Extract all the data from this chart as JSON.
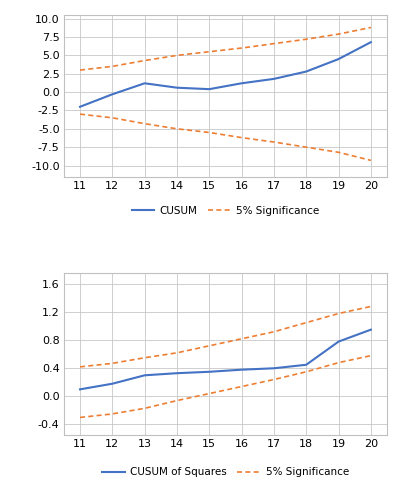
{
  "x": [
    11,
    12,
    13,
    14,
    15,
    16,
    17,
    18,
    19,
    20
  ],
  "cusum": [
    -2.0,
    -0.3,
    1.2,
    0.6,
    0.4,
    1.2,
    1.8,
    2.8,
    4.5,
    6.8
  ],
  "cusum_upper": [
    3.0,
    3.5,
    4.3,
    5.0,
    5.5,
    6.0,
    6.6,
    7.2,
    7.9,
    8.8
  ],
  "cusum_lower": [
    -3.0,
    -3.5,
    -4.3,
    -5.0,
    -5.5,
    -6.2,
    -6.8,
    -7.5,
    -8.2,
    -9.3
  ],
  "cusumsq": [
    0.1,
    0.18,
    0.3,
    0.33,
    0.35,
    0.38,
    0.4,
    0.45,
    0.78,
    0.95
  ],
  "cusumsq_upper": [
    0.42,
    0.47,
    0.55,
    0.62,
    0.72,
    0.82,
    0.92,
    1.05,
    1.18,
    1.28
  ],
  "cusumsq_lower": [
    -0.3,
    -0.25,
    -0.17,
    -0.06,
    0.04,
    0.14,
    0.24,
    0.35,
    0.48,
    0.58
  ],
  "cusum_color": "#4472C4",
  "sig_color": "#ED7D31",
  "cusum_yticks": [
    -10.0,
    -7.5,
    -5.0,
    -2.5,
    0.0,
    2.5,
    5.0,
    7.5,
    10.0
  ],
  "cusum_ylim": [
    -11.5,
    10.5
  ],
  "cusumsq_yticks": [
    -0.4,
    0.0,
    0.4,
    0.8,
    1.2,
    1.6
  ],
  "cusumsq_ylim": [
    -0.55,
    1.75
  ],
  "xticks": [
    11,
    12,
    13,
    14,
    15,
    16,
    17,
    18,
    19,
    20
  ],
  "legend1_labels": [
    "CUSUM",
    "5% Significance"
  ],
  "legend2_labels": [
    "CUSUM of Squares",
    "5% Significance"
  ],
  "background": "#FFFFFF",
  "grid_color": "#C8C8C8",
  "spine_color": "#C0C0C0",
  "tick_fontsize": 8.0,
  "legend_fontsize": 7.5
}
